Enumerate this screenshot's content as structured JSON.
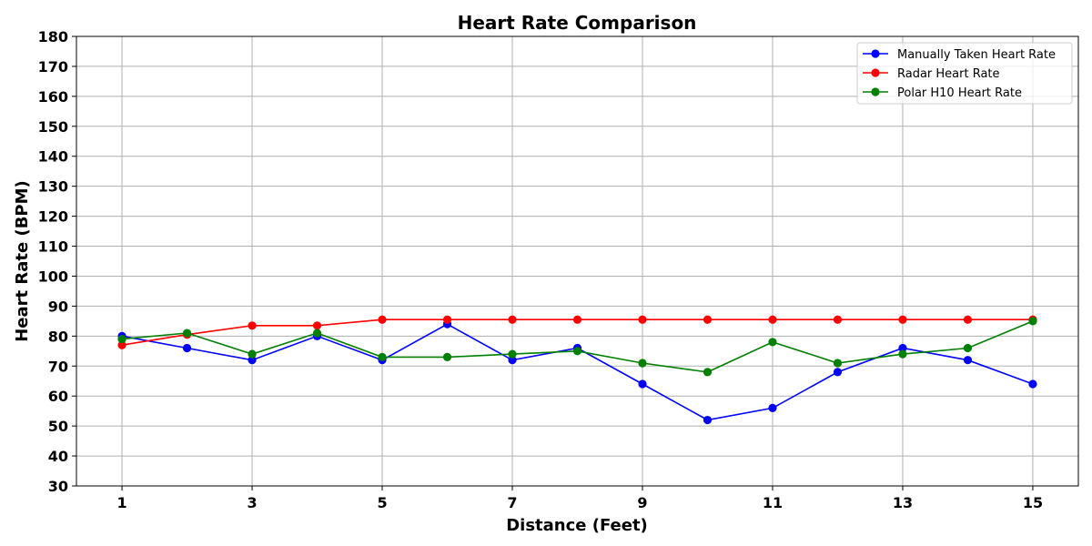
{
  "chart_data": {
    "type": "line",
    "title": "Heart Rate Comparison",
    "xlabel": "Distance (Feet)",
    "ylabel": "Heart Rate (BPM)",
    "x": [
      1,
      2,
      3,
      4,
      5,
      6,
      7,
      8,
      9,
      10,
      11,
      12,
      13,
      14,
      15
    ],
    "xlim": [
      0.3,
      15.7
    ],
    "ylim": [
      30,
      180
    ],
    "xticks": [
      1,
      3,
      5,
      7,
      9,
      11,
      13,
      15
    ],
    "yticks": [
      30,
      40,
      50,
      60,
      70,
      80,
      90,
      100,
      110,
      120,
      130,
      140,
      150,
      160,
      170,
      180
    ],
    "grid": true,
    "legend_position": "top-right",
    "series": [
      {
        "name": "Manually Taken Heart Rate",
        "color": "#0000ff",
        "values": [
          80,
          76,
          72,
          80,
          72,
          84,
          72,
          76,
          64,
          52,
          56,
          68,
          76,
          72,
          64
        ]
      },
      {
        "name": "Radar Heart Rate",
        "color": "#ff0000",
        "values": [
          77,
          80.5,
          83.5,
          83.5,
          85.5,
          85.5,
          85.5,
          85.5,
          85.5,
          85.5,
          85.5,
          85.5,
          85.5,
          85.5,
          85.5
        ]
      },
      {
        "name": "Polar H10 Heart Rate",
        "color": "#008000",
        "values": [
          79,
          81,
          74,
          81,
          73,
          73,
          74,
          75,
          71,
          68,
          78,
          71,
          74,
          76,
          85
        ]
      }
    ]
  }
}
